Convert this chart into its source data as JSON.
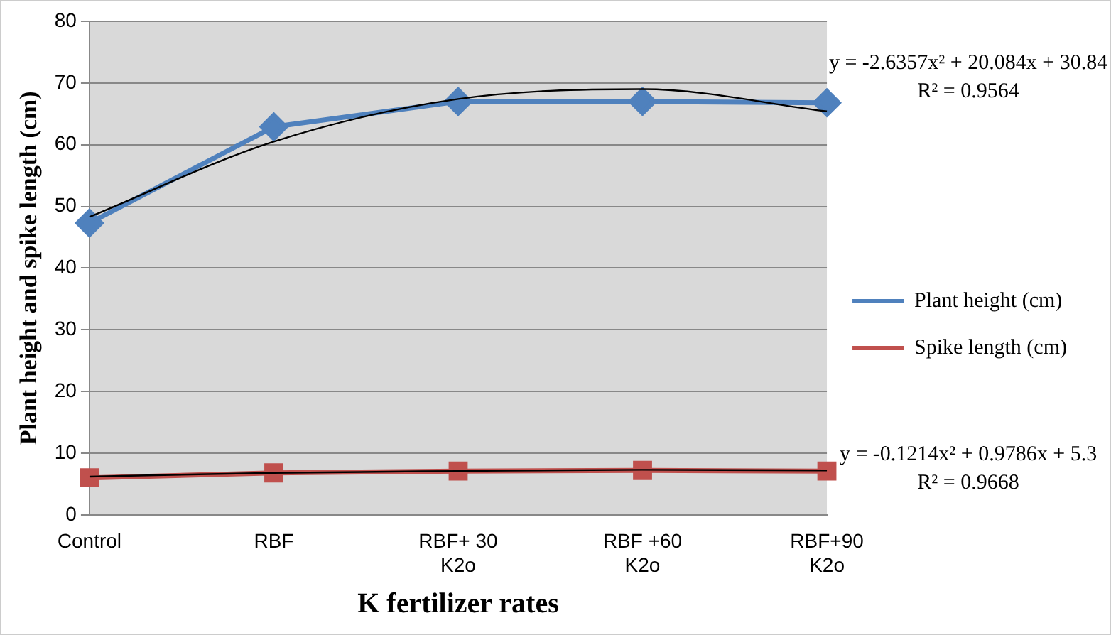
{
  "chart_data": {
    "type": "line",
    "xlabel": "K fertilizer rates",
    "ylabel": "Plant height and spike length (cm)",
    "categories": [
      "Control",
      "RBF",
      "RBF+ 30 K2o",
      "RBF +60 K2o",
      "RBF+90 K2o"
    ],
    "series": [
      {
        "name": "Plant height (cm)",
        "color": "#4f81bd",
        "values": [
          47.3,
          62.9,
          67,
          67,
          66.8
        ],
        "marker": "diamond"
      },
      {
        "name": "Spike length (cm)",
        "color": "#c0504d",
        "values": [
          6,
          6.8,
          7.1,
          7.2,
          7.1
        ],
        "marker": "square"
      },
      {
        "type": "line",
        "color": "#000000",
        "values": [
          48.3,
          60.5,
          67.4,
          69,
          65.4
        ],
        "marker": "none"
      },
      {
        "type": "line",
        "color": "#000000",
        "values": [
          6.2,
          6.8,
          7.1,
          7.3,
          7.2
        ],
        "marker": "none"
      }
    ],
    "ylim": [
      0,
      80
    ],
    "yticks": [
      0,
      10,
      20,
      30,
      40,
      50,
      60,
      70,
      80
    ],
    "grid": "y",
    "legend": "right",
    "annotations": [
      "y = -2.6357x² + 20.084x + 30.84\nR² = 0.9564",
      "y = -0.1214x² + 0.9786x + 5.3\nR² = 0.9668"
    ]
  }
}
